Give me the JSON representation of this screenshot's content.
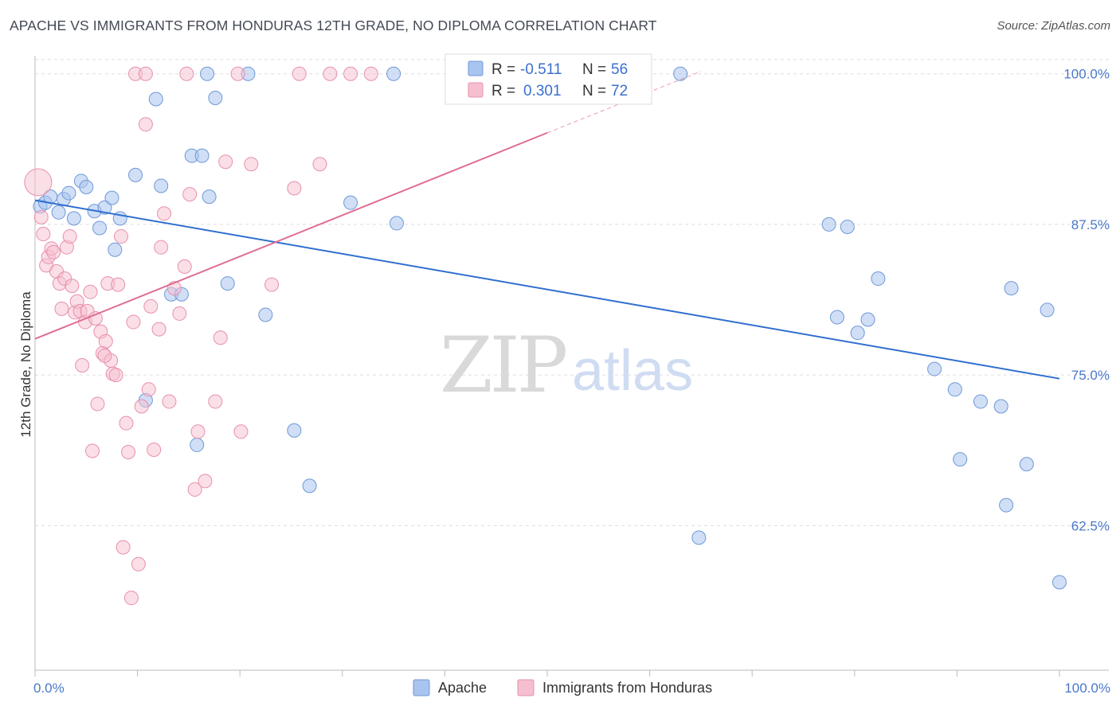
{
  "title": "APACHE VS IMMIGRANTS FROM HONDURAS 12TH GRADE, NO DIPLOMA CORRELATION CHART",
  "source": "Source: ZipAtlas.com",
  "watermark": {
    "zip": "ZIP",
    "atlas": "atlas"
  },
  "colors": {
    "apache_fill": "#a9c4ee",
    "apache_stroke": "#6f98d8",
    "apache_line": "#2f6fce",
    "honduras_fill": "#f6bfd0",
    "honduras_stroke": "#e98fac",
    "honduras_line": "#e06c93",
    "tick_label": "#4a78c8",
    "grid": "#dddddd"
  },
  "legend": {
    "rows": [
      {
        "r_label": "R =",
        "r_value": "-0.511",
        "n_label": "N =",
        "n_value": "56"
      },
      {
        "r_label": "R =",
        "r_value": "0.301",
        "n_label": "N =",
        "n_value": "72"
      }
    ]
  },
  "bottom_legend": [
    "Apache",
    "Immigrants from Honduras"
  ],
  "chart_data": {
    "type": "scatter",
    "ylabel": "12th Grade, No Diploma",
    "xlabel": "",
    "x_tick_labels": [
      "0.0%",
      "100.0%"
    ],
    "y_tick_labels": [
      "100.0%",
      "87.5%",
      "75.0%",
      "62.5%"
    ],
    "y_ticks": [
      100.0,
      87.5,
      75.0,
      62.5
    ],
    "xlim": [
      0,
      100
    ],
    "ylim": [
      50.5,
      101.5
    ],
    "grid": true,
    "legend_placement": "top-center",
    "series": [
      {
        "name": "Apache",
        "R": -0.511,
        "N": 56,
        "trend": {
          "x": [
            0,
            100
          ],
          "y": [
            89.5,
            74.7
          ]
        },
        "points": [
          [
            0.5,
            89.0
          ],
          [
            1.0,
            89.3
          ],
          [
            1.5,
            89.8
          ],
          [
            2.3,
            88.5
          ],
          [
            2.8,
            89.6
          ],
          [
            3.3,
            90.1
          ],
          [
            3.8,
            88.0
          ],
          [
            4.5,
            91.1
          ],
          [
            5.0,
            90.6
          ],
          [
            5.8,
            88.6
          ],
          [
            6.3,
            87.2
          ],
          [
            6.8,
            88.9
          ],
          [
            7.5,
            89.7
          ],
          [
            7.8,
            85.4
          ],
          [
            8.3,
            88.0
          ],
          [
            9.8,
            91.6
          ],
          [
            10.8,
            72.9
          ],
          [
            11.8,
            97.9
          ],
          [
            12.3,
            90.7
          ],
          [
            13.3,
            81.7
          ],
          [
            14.3,
            81.7
          ],
          [
            15.3,
            93.2
          ],
          [
            15.8,
            69.2
          ],
          [
            16.3,
            93.2
          ],
          [
            17.0,
            89.8
          ],
          [
            16.8,
            100.0
          ],
          [
            17.6,
            98.0
          ],
          [
            18.8,
            82.6
          ],
          [
            20.8,
            100.0
          ],
          [
            22.5,
            80.0
          ],
          [
            25.3,
            70.4
          ],
          [
            26.8,
            65.8
          ],
          [
            30.8,
            89.3
          ],
          [
            35.0,
            100.0
          ],
          [
            35.3,
            87.6
          ],
          [
            43.8,
            100.0
          ],
          [
            46.3,
            100.0
          ],
          [
            64.8,
            61.5
          ],
          [
            77.5,
            87.5
          ],
          [
            78.3,
            79.8
          ],
          [
            79.3,
            87.3
          ],
          [
            80.3,
            78.5
          ],
          [
            81.3,
            79.6
          ],
          [
            82.3,
            83.0
          ],
          [
            87.8,
            75.5
          ],
          [
            89.8,
            73.8
          ],
          [
            90.3,
            68.0
          ],
          [
            92.3,
            72.8
          ],
          [
            94.3,
            72.4
          ],
          [
            94.8,
            64.2
          ],
          [
            95.3,
            82.2
          ],
          [
            96.8,
            67.6
          ],
          [
            98.8,
            80.4
          ],
          [
            100.0,
            57.8
          ],
          [
            63.0,
            100.0
          ],
          [
            57.0,
            100.0
          ]
        ]
      },
      {
        "name": "Immigrants from Honduras",
        "R": 0.301,
        "N": 72,
        "trend": {
          "x": [
            0,
            50
          ],
          "y": [
            78.0,
            95.1
          ]
        },
        "trend_dashed": {
          "x": [
            50,
            65
          ],
          "y": [
            95.1,
            100.2
          ]
        },
        "points": [
          [
            0.3,
            91.0
          ],
          [
            0.6,
            88.1
          ],
          [
            0.8,
            86.7
          ],
          [
            1.1,
            84.1
          ],
          [
            1.3,
            84.8
          ],
          [
            1.6,
            85.5
          ],
          [
            1.8,
            85.2
          ],
          [
            2.1,
            83.6
          ],
          [
            2.4,
            82.6
          ],
          [
            2.6,
            80.5
          ],
          [
            2.9,
            83.0
          ],
          [
            3.1,
            85.6
          ],
          [
            3.4,
            86.5
          ],
          [
            3.6,
            82.4
          ],
          [
            3.9,
            80.2
          ],
          [
            4.1,
            81.1
          ],
          [
            4.4,
            80.3
          ],
          [
            4.6,
            75.8
          ],
          [
            4.9,
            79.4
          ],
          [
            5.1,
            80.3
          ],
          [
            5.4,
            81.9
          ],
          [
            5.6,
            68.7
          ],
          [
            5.9,
            79.7
          ],
          [
            6.1,
            72.6
          ],
          [
            6.4,
            78.6
          ],
          [
            6.6,
            76.8
          ],
          [
            6.9,
            77.8
          ],
          [
            7.1,
            82.6
          ],
          [
            7.4,
            76.2
          ],
          [
            7.6,
            75.1
          ],
          [
            7.9,
            75.0
          ],
          [
            8.1,
            82.5
          ],
          [
            8.4,
            86.5
          ],
          [
            8.6,
            60.7
          ],
          [
            8.9,
            71.0
          ],
          [
            9.1,
            68.6
          ],
          [
            9.4,
            56.5
          ],
          [
            9.6,
            79.4
          ],
          [
            10.1,
            59.3
          ],
          [
            10.4,
            72.4
          ],
          [
            10.8,
            95.8
          ],
          [
            11.1,
            73.8
          ],
          [
            11.3,
            80.7
          ],
          [
            11.6,
            68.8
          ],
          [
            12.1,
            78.8
          ],
          [
            12.3,
            85.6
          ],
          [
            12.6,
            88.4
          ],
          [
            13.1,
            72.8
          ],
          [
            13.6,
            82.2
          ],
          [
            14.1,
            80.1
          ],
          [
            14.6,
            84.0
          ],
          [
            15.1,
            90.0
          ],
          [
            15.6,
            65.5
          ],
          [
            15.9,
            70.3
          ],
          [
            16.6,
            66.2
          ],
          [
            17.6,
            72.8
          ],
          [
            18.1,
            78.1
          ],
          [
            18.6,
            92.7
          ],
          [
            20.1,
            70.3
          ],
          [
            21.1,
            92.5
          ],
          [
            23.1,
            82.5
          ],
          [
            25.3,
            90.5
          ],
          [
            27.8,
            92.5
          ],
          [
            28.8,
            100.0
          ],
          [
            30.8,
            100.0
          ],
          [
            9.8,
            100.0
          ],
          [
            10.8,
            100.0
          ],
          [
            14.8,
            100.0
          ],
          [
            19.8,
            100.0
          ],
          [
            25.8,
            100.0
          ],
          [
            32.8,
            100.0
          ],
          [
            6.8,
            76.6
          ]
        ]
      }
    ]
  }
}
